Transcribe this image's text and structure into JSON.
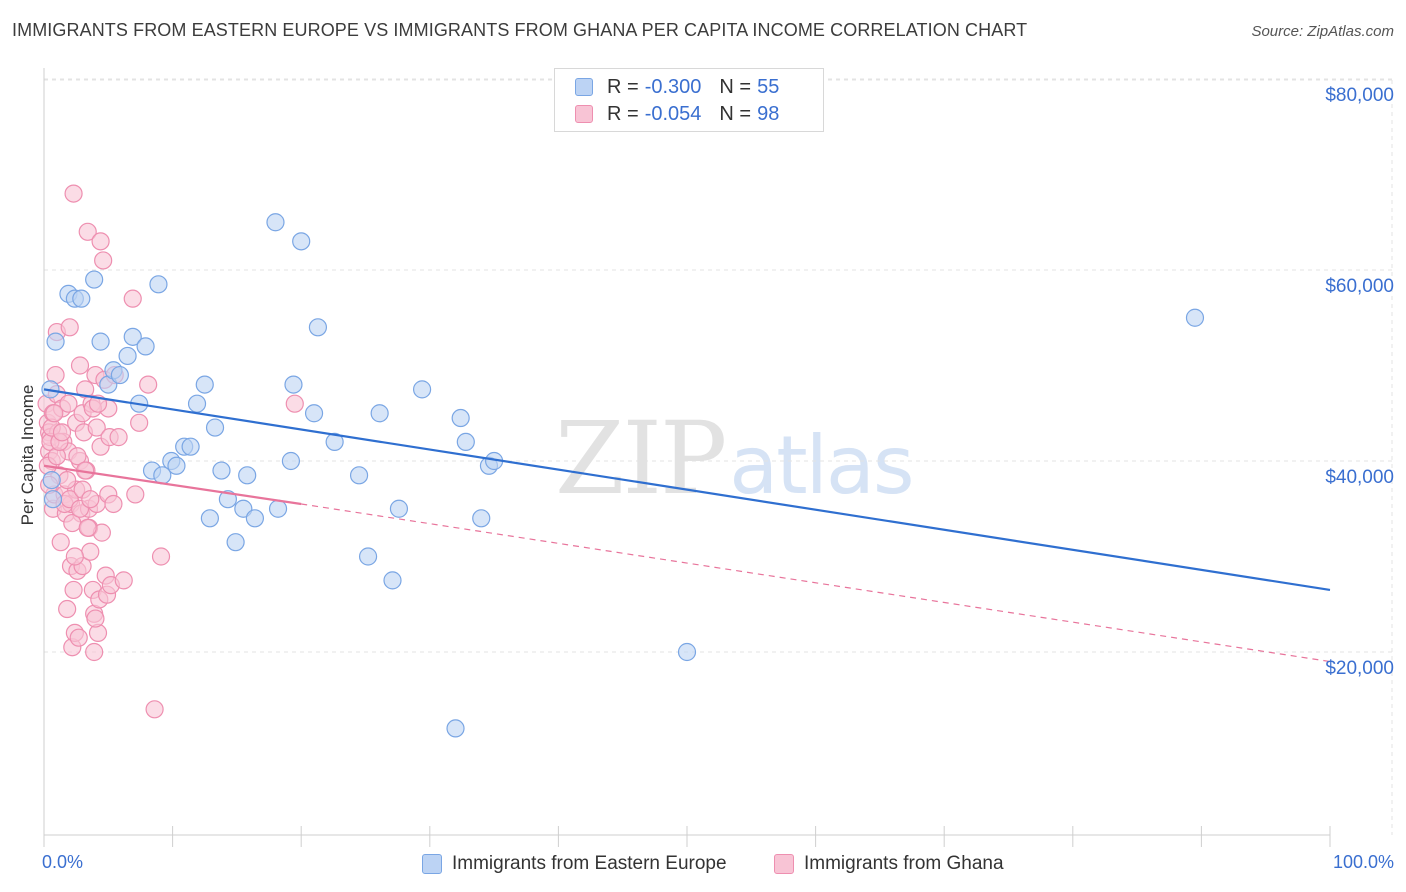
{
  "header": {
    "title": "IMMIGRANTS FROM EASTERN EUROPE VS IMMIGRANTS FROM GHANA PER CAPITA INCOME CORRELATION CHART",
    "source": "Source: ZipAtlas.com"
  },
  "watermark": {
    "zip": "ZIP",
    "atlas": "atlas"
  },
  "legend": {
    "rows": [
      {
        "r_label": "R =",
        "r_value": "-0.300",
        "n_label": "N =",
        "n_value": "55",
        "color": "#8fb6ee"
      },
      {
        "r_label": "R =",
        "r_value": "-0.054",
        "n_label": "N =",
        "n_value": "98",
        "color": "#f39bb8"
      }
    ]
  },
  "bottom_legend": {
    "blue": "Immigrants from Eastern Europe",
    "pink": "Immigrants from Ghana"
  },
  "x_axis": {
    "left_label": "0.0%",
    "right_label": "100.0%"
  },
  "y_axis": {
    "label": "Per Capita Income",
    "ticks": [
      "$80,000",
      "$60,000",
      "$40,000",
      "$20,000"
    ]
  },
  "colors": {
    "blue_fill": "#bcd3f4",
    "blue_stroke": "#7aa6e4",
    "blue_line": "#2f6fd0",
    "pink_fill": "#f8c4d5",
    "pink_stroke": "#ee8fb0",
    "pink_line": "#e8749b",
    "grid": "#e3e3e3",
    "tick_text": "#3a6fd0"
  },
  "chart_data": {
    "type": "scatter",
    "title": "IMMIGRANTS FROM EASTERN EUROPE VS IMMIGRANTS FROM GHANA PER CAPITA INCOME CORRELATION CHART",
    "xlabel": "",
    "ylabel": "Per Capita Income",
    "xlim": [
      0,
      100
    ],
    "ylim": [
      0,
      82000
    ],
    "y_ticks": [
      20000,
      40000,
      60000,
      80000
    ],
    "grid": true,
    "legend_position": "top-center",
    "series": [
      {
        "name": "Immigrants from Eastern Europe",
        "stats": {
          "R": -0.3,
          "N": 55
        },
        "trend": {
          "x": [
            0,
            100
          ],
          "y": [
            47500,
            26500
          ]
        },
        "points": [
          [
            0.5,
            47500
          ],
          [
            0.6,
            38000
          ],
          [
            0.9,
            52500
          ],
          [
            1.9,
            57500
          ],
          [
            2.4,
            57000
          ],
          [
            2.9,
            57000
          ],
          [
            3.9,
            59000
          ],
          [
            4.4,
            52500
          ],
          [
            5.0,
            48000
          ],
          [
            5.4,
            49500
          ],
          [
            5.9,
            49000
          ],
          [
            6.5,
            51000
          ],
          [
            6.9,
            53000
          ],
          [
            7.4,
            46000
          ],
          [
            7.9,
            52000
          ],
          [
            8.4,
            39000
          ],
          [
            8.9,
            58500
          ],
          [
            9.2,
            38500
          ],
          [
            9.9,
            40000
          ],
          [
            10.3,
            39500
          ],
          [
            10.9,
            41500
          ],
          [
            11.4,
            41500
          ],
          [
            11.9,
            46000
          ],
          [
            12.5,
            48000
          ],
          [
            12.9,
            34000
          ],
          [
            13.3,
            43500
          ],
          [
            13.8,
            39000
          ],
          [
            14.3,
            36000
          ],
          [
            14.9,
            31500
          ],
          [
            15.5,
            35000
          ],
          [
            15.8,
            38500
          ],
          [
            16.4,
            34000
          ],
          [
            18.0,
            65000
          ],
          [
            18.2,
            35000
          ],
          [
            19.4,
            48000
          ],
          [
            19.2,
            40000
          ],
          [
            20.0,
            63000
          ],
          [
            21.0,
            45000
          ],
          [
            21.3,
            54000
          ],
          [
            22.6,
            42000
          ],
          [
            24.5,
            38500
          ],
          [
            25.2,
            30000
          ],
          [
            26.1,
            45000
          ],
          [
            27.1,
            27500
          ],
          [
            27.6,
            35000
          ],
          [
            29.4,
            47500
          ],
          [
            32.0,
            12000
          ],
          [
            32.4,
            44500
          ],
          [
            32.8,
            42000
          ],
          [
            34.0,
            34000
          ],
          [
            34.6,
            39500
          ],
          [
            35.0,
            40000
          ],
          [
            50.0,
            20000
          ],
          [
            89.5,
            55000
          ],
          [
            0.7,
            36000
          ]
        ]
      },
      {
        "name": "Immigrants from Ghana",
        "stats": {
          "R": -0.054,
          "N": 98
        },
        "trend": {
          "x": [
            0,
            20
          ],
          "y": [
            39500,
            35500
          ]
        },
        "trend_extended": {
          "x": [
            20,
            100
          ],
          "y": [
            35500,
            19000
          ]
        },
        "points": [
          [
            0.2,
            46000
          ],
          [
            0.3,
            44000
          ],
          [
            0.4,
            43000
          ],
          [
            0.4,
            41000
          ],
          [
            0.5,
            42500
          ],
          [
            0.6,
            40000
          ],
          [
            0.7,
            45000
          ],
          [
            0.7,
            35000
          ],
          [
            0.8,
            36500
          ],
          [
            0.9,
            49000
          ],
          [
            1.0,
            53500
          ],
          [
            1.0,
            47000
          ],
          [
            1.1,
            43000
          ],
          [
            1.2,
            38500
          ],
          [
            1.3,
            31500
          ],
          [
            1.4,
            45500
          ],
          [
            1.5,
            42000
          ],
          [
            1.6,
            36500
          ],
          [
            1.7,
            34500
          ],
          [
            1.8,
            24500
          ],
          [
            1.9,
            41000
          ],
          [
            1.9,
            46000
          ],
          [
            2.0,
            54000
          ],
          [
            2.1,
            35500
          ],
          [
            2.1,
            29000
          ],
          [
            2.2,
            20500
          ],
          [
            2.3,
            68000
          ],
          [
            2.3,
            26500
          ],
          [
            2.4,
            22000
          ],
          [
            2.5,
            44000
          ],
          [
            2.5,
            37000
          ],
          [
            2.6,
            28500
          ],
          [
            2.7,
            21500
          ],
          [
            2.8,
            50000
          ],
          [
            2.8,
            40000
          ],
          [
            2.9,
            34500
          ],
          [
            3.0,
            45000
          ],
          [
            3.0,
            29000
          ],
          [
            3.1,
            43000
          ],
          [
            3.2,
            47500
          ],
          [
            3.3,
            39000
          ],
          [
            3.4,
            64000
          ],
          [
            3.5,
            35000
          ],
          [
            3.5,
            33000
          ],
          [
            3.6,
            30500
          ],
          [
            3.7,
            46000
          ],
          [
            3.8,
            26500
          ],
          [
            3.9,
            24000
          ],
          [
            3.9,
            20000
          ],
          [
            4.0,
            49000
          ],
          [
            4.1,
            43500
          ],
          [
            4.1,
            35500
          ],
          [
            4.2,
            22000
          ],
          [
            4.3,
            25500
          ],
          [
            4.4,
            63000
          ],
          [
            4.4,
            41500
          ],
          [
            4.5,
            32500
          ],
          [
            4.6,
            61000
          ],
          [
            4.7,
            48500
          ],
          [
            4.8,
            28000
          ],
          [
            4.9,
            26000
          ],
          [
            5.0,
            45500
          ],
          [
            5.0,
            36500
          ],
          [
            5.1,
            42500
          ],
          [
            5.2,
            27000
          ],
          [
            5.4,
            35500
          ],
          [
            5.5,
            49000
          ],
          [
            5.8,
            42500
          ],
          [
            6.2,
            27500
          ],
          [
            6.9,
            57000
          ],
          [
            7.1,
            36500
          ],
          [
            7.4,
            44000
          ],
          [
            8.1,
            48000
          ],
          [
            8.6,
            14000
          ],
          [
            9.1,
            30000
          ],
          [
            19.5,
            46000
          ],
          [
            0.3,
            39500
          ],
          [
            0.4,
            37500
          ],
          [
            0.5,
            42000
          ],
          [
            0.6,
            43500
          ],
          [
            0.8,
            45000
          ],
          [
            1.0,
            40500
          ],
          [
            1.2,
            42000
          ],
          [
            1.4,
            43000
          ],
          [
            1.6,
            35500
          ],
          [
            1.8,
            38000
          ],
          [
            2.0,
            36000
          ],
          [
            2.2,
            33500
          ],
          [
            2.4,
            30000
          ],
          [
            2.6,
            40500
          ],
          [
            2.8,
            35000
          ],
          [
            3.0,
            37000
          ],
          [
            3.2,
            39000
          ],
          [
            3.4,
            33000
          ],
          [
            3.6,
            36000
          ],
          [
            3.8,
            45500
          ],
          [
            4.0,
            23500
          ],
          [
            4.2,
            46000
          ]
        ]
      }
    ]
  }
}
